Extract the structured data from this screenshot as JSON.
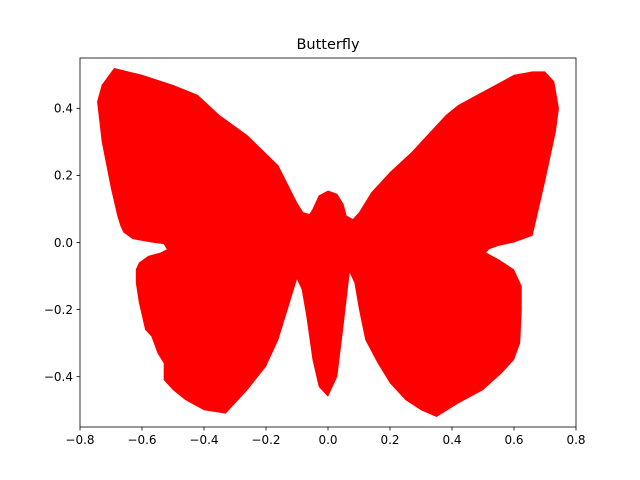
{
  "chart_data": {
    "type": "area",
    "title": "Butterfly",
    "xlabel": "",
    "ylabel": "",
    "xlim": [
      -0.8,
      0.8
    ],
    "ylim": [
      -0.55,
      0.55
    ],
    "x_ticks": [
      -0.8,
      -0.6,
      -0.4,
      -0.2,
      0.0,
      0.2,
      0.4,
      0.6,
      0.8
    ],
    "x_tick_labels": [
      "−0.8",
      "−0.6",
      "−0.4",
      "−0.2",
      "0.0",
      "0.2",
      "0.4",
      "0.6",
      "0.8"
    ],
    "y_ticks": [
      -0.4,
      -0.2,
      0.0,
      0.2,
      0.4
    ],
    "y_tick_labels": [
      "−0.4",
      "−0.2",
      "0.0",
      "0.2",
      "0.4"
    ],
    "grid": false,
    "fill_color": "#ff0000",
    "series": [
      {
        "x": [
          0.0,
          0.03,
          0.05,
          0.06,
          0.08,
          0.1,
          0.14,
          0.2,
          0.27,
          0.33,
          0.38,
          0.42,
          0.48,
          0.54,
          0.6,
          0.66,
          0.7,
          0.73,
          0.745,
          0.735,
          0.7,
          0.68,
          0.66,
          0.6,
          0.55,
          0.52,
          0.51,
          0.55,
          0.6,
          0.625,
          0.625,
          0.62,
          0.6,
          0.56,
          0.5,
          0.42,
          0.35,
          0.3,
          0.25,
          0.2,
          0.16,
          0.12,
          0.1,
          0.085,
          0.07,
          0.05,
          0.03,
          0.0,
          -0.03,
          -0.05,
          -0.07,
          -0.085,
          -0.1,
          -0.12,
          -0.16,
          -0.2,
          -0.26,
          -0.33,
          -0.4,
          -0.46,
          -0.5,
          -0.53,
          -0.53,
          -0.55,
          -0.57,
          -0.59,
          -0.6,
          -0.61,
          -0.62,
          -0.62,
          -0.61,
          -0.58,
          -0.54,
          -0.52,
          -0.53,
          -0.57,
          -0.63,
          -0.66,
          -0.67,
          -0.68,
          -0.7,
          -0.73,
          -0.745,
          -0.73,
          -0.69,
          -0.6,
          -0.5,
          -0.42,
          -0.35,
          -0.26,
          -0.16,
          -0.1,
          -0.08,
          -0.06,
          -0.05,
          -0.03,
          0.0
        ],
        "y": [
          0.155,
          0.145,
          0.115,
          0.08,
          0.07,
          0.09,
          0.15,
          0.21,
          0.27,
          0.33,
          0.38,
          0.41,
          0.44,
          0.47,
          0.5,
          0.51,
          0.51,
          0.48,
          0.4,
          0.33,
          0.18,
          0.1,
          0.02,
          0.0,
          -0.01,
          -0.02,
          -0.03,
          -0.05,
          -0.08,
          -0.13,
          -0.2,
          -0.3,
          -0.35,
          -0.39,
          -0.44,
          -0.48,
          -0.52,
          -0.5,
          -0.47,
          -0.42,
          -0.36,
          -0.29,
          -0.2,
          -0.12,
          -0.09,
          -0.25,
          -0.4,
          -0.46,
          -0.43,
          -0.35,
          -0.22,
          -0.14,
          -0.11,
          -0.17,
          -0.29,
          -0.37,
          -0.44,
          -0.51,
          -0.5,
          -0.47,
          -0.44,
          -0.41,
          -0.36,
          -0.33,
          -0.28,
          -0.26,
          -0.22,
          -0.18,
          -0.12,
          -0.08,
          -0.06,
          -0.04,
          -0.03,
          -0.02,
          -0.005,
          0.0,
          0.01,
          0.03,
          0.05,
          0.08,
          0.16,
          0.3,
          0.42,
          0.47,
          0.52,
          0.5,
          0.47,
          0.44,
          0.38,
          0.32,
          0.23,
          0.12,
          0.09,
          0.085,
          0.1,
          0.14,
          0.155
        ]
      }
    ]
  }
}
